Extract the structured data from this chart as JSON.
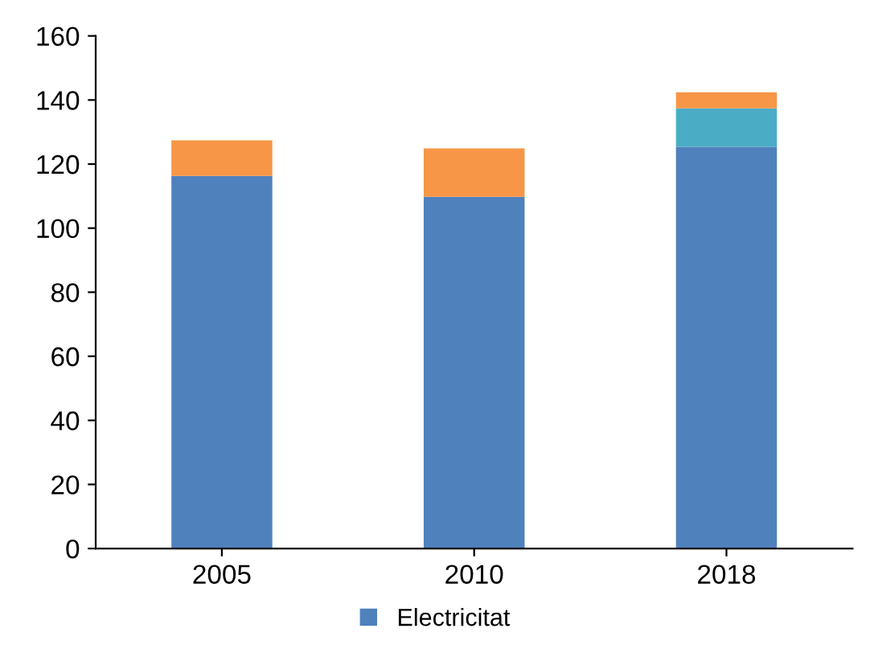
{
  "chart_data": {
    "type": "bar",
    "stacked": true,
    "categories": [
      "2005",
      "2010",
      "2018"
    ],
    "series": [
      {
        "name": "Electricitat",
        "color": "#4f81bd",
        "values": [
          116.3,
          109.8,
          125.4
        ]
      },
      {
        "color": "#4bacc6",
        "values": [
          0,
          0,
          12
        ]
      },
      {
        "color": "#f79646",
        "values": [
          11.1,
          15.1,
          5
        ]
      }
    ],
    "ylim": [
      0,
      160
    ],
    "yticks": [
      0,
      20,
      40,
      60,
      80,
      100,
      120,
      140,
      160
    ],
    "grid": false,
    "legend": "bottom"
  }
}
